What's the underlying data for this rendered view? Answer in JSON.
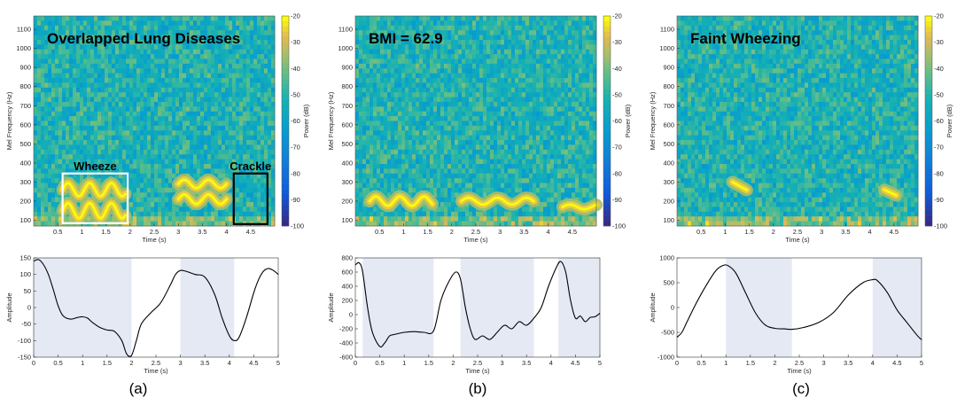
{
  "panels": [
    {
      "label": "(a)",
      "spectrogram": {
        "title": "Overlapped Lung Diseases",
        "annotations": [
          {
            "text": "Wheeze",
            "box_color": "#ffffff",
            "t_range": [
              0.6,
              1.95
            ],
            "f_range": [
              85,
              345
            ]
          },
          {
            "text": "Crackle",
            "box_color": "#000000",
            "t_range": [
              4.15,
              4.85
            ],
            "f_range": [
              80,
              345
            ]
          }
        ],
        "bands": [
          {
            "t": [
              0.6,
              1.9
            ],
            "f": 150,
            "amp": 40,
            "period": 0.45
          },
          {
            "t": [
              0.6,
              1.9
            ],
            "f": 260,
            "amp": 35,
            "period": 0.45
          },
          {
            "t": [
              3.0,
              4.0
            ],
            "f": 210,
            "amp": 25,
            "period": 0.5
          },
          {
            "t": [
              3.0,
              4.0
            ],
            "f": 290,
            "amp": 22,
            "period": 0.5
          }
        ],
        "xlabel": "Time (s)",
        "ylabel": "Mel Frequency (Hz)",
        "colorbar_label": "Power (dB)"
      },
      "waveform": {
        "ylim": [
          -150,
          150
        ],
        "yticks": [
          "150",
          "100",
          "50",
          "0",
          "-50",
          "-100",
          "-150"
        ],
        "ytick_values": [
          150,
          100,
          50,
          0,
          -50,
          -100,
          -150
        ],
        "shaded": [
          [
            0,
            2
          ],
          [
            3,
            4.1
          ]
        ],
        "points": [
          [
            0,
            140
          ],
          [
            0.1,
            145
          ],
          [
            0.2,
            130
          ],
          [
            0.3,
            100
          ],
          [
            0.4,
            55
          ],
          [
            0.5,
            5
          ],
          [
            0.6,
            -25
          ],
          [
            0.75,
            -35
          ],
          [
            0.9,
            -30
          ],
          [
            1.0,
            -28
          ],
          [
            1.1,
            -32
          ],
          [
            1.2,
            -45
          ],
          [
            1.35,
            -60
          ],
          [
            1.5,
            -68
          ],
          [
            1.65,
            -72
          ],
          [
            1.8,
            -100
          ],
          [
            1.9,
            -140
          ],
          [
            2.0,
            -145
          ],
          [
            2.1,
            -100
          ],
          [
            2.2,
            -50
          ],
          [
            2.4,
            -15
          ],
          [
            2.6,
            15
          ],
          [
            2.8,
            70
          ],
          [
            2.9,
            100
          ],
          [
            3.0,
            112
          ],
          [
            3.1,
            110
          ],
          [
            3.3,
            100
          ],
          [
            3.5,
            92
          ],
          [
            3.7,
            40
          ],
          [
            3.85,
            -30
          ],
          [
            4.0,
            -85
          ],
          [
            4.1,
            -100
          ],
          [
            4.2,
            -90
          ],
          [
            4.35,
            -30
          ],
          [
            4.5,
            45
          ],
          [
            4.6,
            85
          ],
          [
            4.7,
            110
          ],
          [
            4.8,
            118
          ],
          [
            4.9,
            112
          ],
          [
            5.0,
            100
          ]
        ],
        "xlabel": "Time (s)",
        "ylabel": "Amplitude"
      }
    },
    {
      "label": "(b)",
      "spectrogram": {
        "title": "BMI = 62.9",
        "annotations": [],
        "bands": [
          {
            "t": [
              0.3,
              1.6
            ],
            "f": 200,
            "amp": 25,
            "period": 0.5
          },
          {
            "t": [
              2.2,
              3.7
            ],
            "f": 200,
            "amp": 18,
            "period": 0.6
          },
          {
            "t": [
              4.3,
              5.0
            ],
            "f": 170,
            "amp": 12,
            "period": 0.6
          }
        ],
        "xlabel": "Time (s)",
        "ylabel": "Mel Frequency (Hz)",
        "colorbar_label": "Power (dB)"
      },
      "waveform": {
        "ylim": [
          -600,
          800
        ],
        "yticks": [
          "800",
          "600",
          "400",
          "200",
          "0",
          "-200",
          "-400",
          "-600"
        ],
        "ytick_values": [
          800,
          600,
          400,
          200,
          0,
          -200,
          -400,
          -600
        ],
        "shaded": [
          [
            0.15,
            1.6
          ],
          [
            2.15,
            3.65
          ],
          [
            4.15,
            5
          ]
        ],
        "points": [
          [
            0,
            700
          ],
          [
            0.08,
            730
          ],
          [
            0.15,
            600
          ],
          [
            0.25,
            100
          ],
          [
            0.35,
            -250
          ],
          [
            0.5,
            -450
          ],
          [
            0.6,
            -400
          ],
          [
            0.7,
            -300
          ],
          [
            0.8,
            -280
          ],
          [
            1.0,
            -250
          ],
          [
            1.2,
            -240
          ],
          [
            1.4,
            -250
          ],
          [
            1.6,
            -230
          ],
          [
            1.75,
            200
          ],
          [
            1.9,
            450
          ],
          [
            2.05,
            600
          ],
          [
            2.15,
            500
          ],
          [
            2.25,
            100
          ],
          [
            2.35,
            -200
          ],
          [
            2.45,
            -350
          ],
          [
            2.6,
            -300
          ],
          [
            2.75,
            -350
          ],
          [
            2.9,
            -250
          ],
          [
            3.05,
            -150
          ],
          [
            3.2,
            -200
          ],
          [
            3.35,
            -100
          ],
          [
            3.5,
            -150
          ],
          [
            3.65,
            -50
          ],
          [
            3.8,
            100
          ],
          [
            3.95,
            400
          ],
          [
            4.1,
            650
          ],
          [
            4.2,
            750
          ],
          [
            4.3,
            600
          ],
          [
            4.4,
            200
          ],
          [
            4.5,
            -50
          ],
          [
            4.6,
            -20
          ],
          [
            4.7,
            -100
          ],
          [
            4.8,
            -40
          ],
          [
            4.9,
            -30
          ],
          [
            5.0,
            20
          ]
        ],
        "xlabel": "Time (s)",
        "ylabel": "Amplitude"
      }
    },
    {
      "label": "(c)",
      "spectrogram": {
        "title": "Faint Wheezing",
        "annotations": [],
        "bands": [
          {
            "t": [
              1.15,
              1.45
            ],
            "f": 300,
            "amp": 0,
            "period": 1,
            "slope": -140
          },
          {
            "t": [
              4.3,
              4.55
            ],
            "f": 260,
            "amp": 0,
            "period": 1,
            "slope": -120
          }
        ],
        "xlabel": "Time (s)",
        "ylabel": "Mel Frequency (Hz)",
        "colorbar_label": "Power (dB)"
      },
      "waveform": {
        "ylim": [
          -1000,
          1000
        ],
        "yticks": [
          "1000",
          "500",
          "0",
          "-500",
          "-1000"
        ],
        "ytick_values": [
          1000,
          500,
          0,
          -500,
          -1000
        ],
        "shaded": [
          [
            1,
            2.35
          ],
          [
            4,
            5
          ]
        ],
        "points": [
          [
            0,
            -600
          ],
          [
            0.1,
            -500
          ],
          [
            0.2,
            -300
          ],
          [
            0.4,
            100
          ],
          [
            0.6,
            450
          ],
          [
            0.8,
            750
          ],
          [
            0.95,
            850
          ],
          [
            1.05,
            840
          ],
          [
            1.2,
            700
          ],
          [
            1.4,
            300
          ],
          [
            1.6,
            -100
          ],
          [
            1.8,
            -350
          ],
          [
            2.0,
            -420
          ],
          [
            2.2,
            -430
          ],
          [
            2.35,
            -440
          ],
          [
            2.6,
            -400
          ],
          [
            2.9,
            -300
          ],
          [
            3.2,
            -100
          ],
          [
            3.5,
            250
          ],
          [
            3.8,
            500
          ],
          [
            4.0,
            560
          ],
          [
            4.1,
            540
          ],
          [
            4.3,
            300
          ],
          [
            4.5,
            -50
          ],
          [
            4.7,
            -300
          ],
          [
            4.9,
            -550
          ],
          [
            5.0,
            -650
          ]
        ],
        "xlabel": "Time (s)",
        "ylabel": "Amplitude"
      }
    }
  ],
  "spectrogram_xticks": [
    "0.5",
    "1",
    "1.5",
    "2",
    "2.5",
    "3",
    "3.5",
    "4",
    "4.5"
  ],
  "spectrogram_xtick_values": [
    0.5,
    1,
    1.5,
    2,
    2.5,
    3,
    3.5,
    4,
    4.5
  ],
  "spectrogram_yticks": [
    "1100",
    "1000",
    "900",
    "800",
    "700",
    "600",
    "500",
    "400",
    "300",
    "200",
    "100"
  ],
  "spectrogram_ytick_values": [
    1100,
    1000,
    900,
    800,
    700,
    600,
    500,
    400,
    300,
    200,
    100
  ],
  "waveform_xticks": [
    "0",
    "0.5",
    "1",
    "1.5",
    "2",
    "2.5",
    "3",
    "3.5",
    "4",
    "4.5",
    "5"
  ],
  "waveform_xtick_values": [
    0,
    0.5,
    1,
    1.5,
    2,
    2.5,
    3,
    3.5,
    4,
    4.5,
    5
  ],
  "colorbar_ticks": [
    "-20",
    "-30",
    "-40",
    "-50",
    "-60",
    "-70",
    "-80",
    "-90",
    "-100"
  ],
  "colorbar_tick_values": [
    -20,
    -30,
    -40,
    -50,
    -60,
    -70,
    -80,
    -90,
    -100
  ],
  "colors": {
    "band_shade": "#e4e9f4",
    "curve": "#000000"
  },
  "chart_data": [
    {
      "type": "heatmap",
      "title": "Overlapped Lung Diseases",
      "xlabel": "Time (s)",
      "ylabel": "Mel Frequency (Hz)",
      "xlim": [
        0,
        5
      ],
      "ylim": [
        70,
        1170
      ],
      "color_label": "Power (dB)",
      "color_range": [
        -100,
        -20
      ],
      "annotations": [
        "Wheeze",
        "Crackle"
      ]
    },
    {
      "type": "line",
      "xlabel": "Time (s)",
      "ylabel": "Amplitude",
      "xlim": [
        0,
        5
      ],
      "ylim": [
        -150,
        150
      ],
      "x": [
        0,
        0.5,
        1,
        1.5,
        2,
        2.5,
        3,
        3.5,
        4,
        4.5,
        5
      ],
      "y": [
        140,
        5,
        -28,
        -68,
        -145,
        -5,
        112,
        92,
        -85,
        45,
        100
      ]
    },
    {
      "type": "heatmap",
      "title": "BMI = 62.9",
      "xlabel": "Time (s)",
      "ylabel": "Mel Frequency (Hz)",
      "xlim": [
        0,
        5
      ],
      "ylim": [
        70,
        1170
      ],
      "color_label": "Power (dB)",
      "color_range": [
        -100,
        -20
      ]
    },
    {
      "type": "line",
      "xlabel": "Time (s)",
      "ylabel": "Amplitude",
      "xlim": [
        0,
        5
      ],
      "ylim": [
        -600,
        800
      ],
      "x": [
        0,
        0.5,
        1,
        1.5,
        2,
        2.5,
        3,
        3.5,
        4,
        4.5,
        5
      ],
      "y": [
        700,
        -450,
        -250,
        -250,
        550,
        -300,
        -200,
        -150,
        550,
        -50,
        20
      ]
    },
    {
      "type": "heatmap",
      "title": "Faint Wheezing",
      "xlabel": "Time (s)",
      "ylabel": "Mel Frequency (Hz)",
      "xlim": [
        0,
        5
      ],
      "ylim": [
        70,
        1170
      ],
      "color_label": "Power (dB)",
      "color_range": [
        -100,
        -20
      ]
    },
    {
      "type": "line",
      "xlabel": "Time (s)",
      "ylabel": "Amplitude",
      "xlim": [
        0,
        5
      ],
      "ylim": [
        -1000,
        1000
      ],
      "x": [
        0,
        0.5,
        1,
        1.5,
        2,
        2.5,
        3,
        3.5,
        4,
        4.5,
        5
      ],
      "y": [
        -600,
        300,
        850,
        100,
        -420,
        -410,
        -200,
        250,
        560,
        -50,
        -650
      ]
    }
  ]
}
